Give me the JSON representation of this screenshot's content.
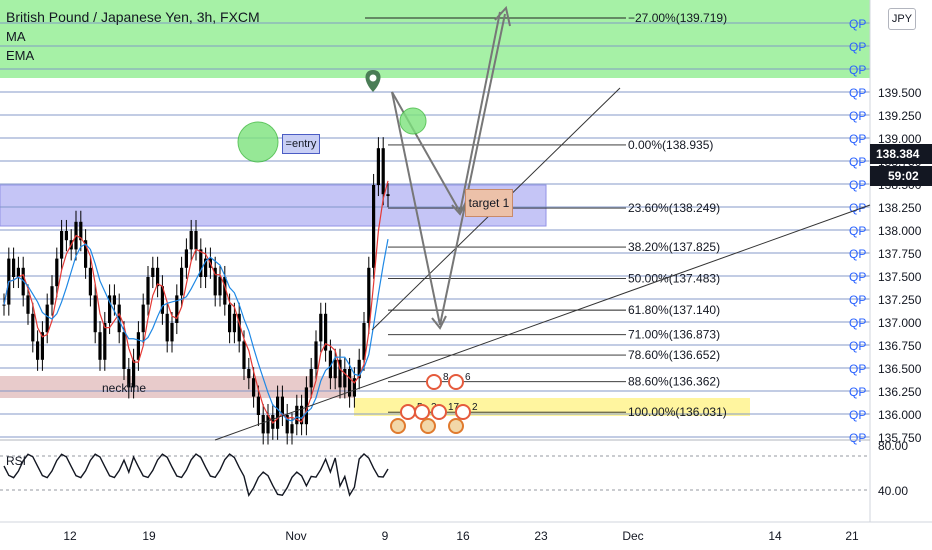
{
  "header": {
    "title": "British Pound / Japanese Yen, 3h, FXCM",
    "indicators": [
      "MA",
      "EMA"
    ]
  },
  "currency_badge": "JPY",
  "price_tag": "138.384",
  "timer_tag": "59:02",
  "price_axis": {
    "ticks": [
      "139.500",
      "139.250",
      "139.000",
      "138.750",
      "138.500",
      "138.250",
      "138.000",
      "137.750",
      "137.500",
      "137.250",
      "137.000",
      "136.750",
      "136.500",
      "136.250",
      "136.000",
      "135.750"
    ],
    "qp_label": "QP"
  },
  "time_axis": {
    "labels": [
      "12",
      "19",
      "Nov",
      "9",
      "16",
      "23",
      "Dec",
      "14",
      "21"
    ]
  },
  "rsi": {
    "label": "RSI",
    "ticks": [
      "80.00",
      "40.00"
    ]
  },
  "fibonacci": [
    {
      "label": "−27.00%(139.719)",
      "price": 139.719
    },
    {
      "label": "0.00%(138.935)",
      "price": 138.935
    },
    {
      "label": "23.60%(138.249)",
      "price": 138.249
    },
    {
      "label": "38.20%(137.825)",
      "price": 137.825
    },
    {
      "label": "50.00%(137.483)",
      "price": 137.483
    },
    {
      "label": "61.80%(137.140)",
      "price": 137.14
    },
    {
      "label": "71.00%(136.873)",
      "price": 136.873
    },
    {
      "label": "78.60%(136.652)",
      "price": 136.652
    },
    {
      "label": "88.60%(136.362)",
      "price": 136.362
    },
    {
      "label": "100.00%(136.031)",
      "price": 136.031
    }
  ],
  "annotations": {
    "entry": "=entry",
    "target": "target 1",
    "neckline": "neckline",
    "event_numbers": [
      "8",
      "6",
      "5",
      "2",
      "17",
      "2"
    ]
  },
  "colors": {
    "green_zone": "#5ce65c",
    "blue_zone": "#9696f0",
    "neck_zone": "#d9a9a9",
    "yellow_zone": "#fff176",
    "candle": "#000000",
    "ma": "#e53935",
    "ema": "#1e88e5",
    "qp_line": "#7e95c7",
    "qp_text": "#2962ff"
  },
  "chart_data": {
    "type": "candlestick",
    "symbol": "GBPJPY",
    "timeframe": "3h",
    "ylim": [
      135.65,
      139.95
    ],
    "close_series": [
      137.2,
      137.7,
      137.5,
      137.6,
      137.3,
      137.1,
      136.8,
      136.6,
      136.9,
      137.2,
      137.4,
      137.7,
      138.0,
      137.9,
      137.8,
      138.1,
      137.9,
      137.6,
      137.3,
      136.9,
      136.6,
      137.0,
      137.3,
      137.2,
      136.9,
      136.5,
      136.3,
      136.6,
      136.9,
      137.2,
      137.5,
      137.6,
      137.4,
      137.1,
      136.8,
      137.0,
      137.3,
      137.6,
      137.8,
      138.0,
      137.8,
      137.5,
      137.7,
      137.6,
      137.3,
      137.5,
      137.2,
      136.9,
      137.1,
      136.8,
      136.5,
      136.4,
      136.2,
      136.0,
      135.8,
      136.0,
      135.85,
      136.2,
      136.0,
      135.8,
      135.9,
      136.1,
      135.9,
      136.3,
      136.5,
      136.8,
      137.1,
      136.7,
      136.4,
      136.6,
      136.3,
      136.5,
      136.2,
      136.4,
      136.6,
      137.0,
      137.6,
      138.5,
      138.9,
      138.4,
      138.38
    ]
  }
}
